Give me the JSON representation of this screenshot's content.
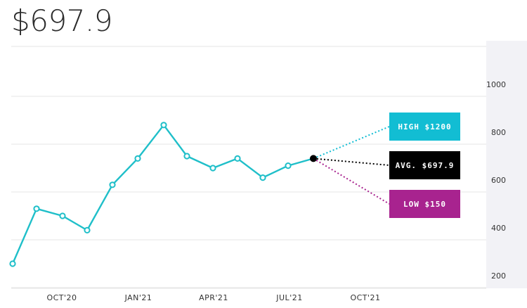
{
  "header": {
    "price": "$697.9"
  },
  "colors": {
    "line": "#1fbfc9",
    "high": "#12bdd3",
    "avg": "#000000",
    "low": "#a8238f",
    "grid": "#e6e6e6",
    "axis_bg": "#f2f2f6"
  },
  "chart_data": {
    "type": "line",
    "title": "$697.9",
    "x_labels": [
      "OCT'20",
      "JAN'21",
      "APR'21",
      "JUL'21",
      "OCT'21"
    ],
    "y_ticks": [
      200,
      400,
      600,
      800,
      1000
    ],
    "ylim": [
      150,
      1150
    ],
    "y_axis_side": "right",
    "grid": true,
    "series": [
      {
        "values": [
          250,
          480,
          450,
          390,
          580,
          690,
          830,
          700,
          650,
          690,
          610,
          660,
          690
        ]
      }
    ],
    "forecast": [
      {
        "label": "HIGH $1200",
        "value": 1200
      },
      {
        "label": "AVG. $697.9",
        "value": 697.9
      },
      {
        "label": "LOW $150",
        "value": 150
      }
    ]
  }
}
